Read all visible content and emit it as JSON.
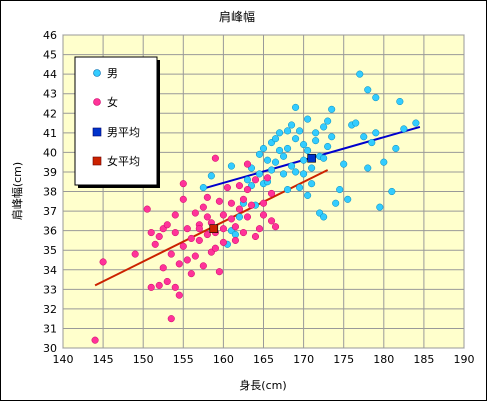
{
  "chart_data": {
    "type": "scatter",
    "title": "肩峰幅",
    "xlabel": "身長(cm)",
    "ylabel": "肩峰幅(cm)",
    "xlim": [
      140,
      190
    ],
    "ylim": [
      30,
      46
    ],
    "xticks": [
      140,
      145,
      150,
      155,
      160,
      165,
      170,
      175,
      180,
      185,
      190
    ],
    "yticks": [
      30,
      31,
      32,
      33,
      34,
      35,
      36,
      37,
      38,
      39,
      40,
      41,
      42,
      43,
      44,
      45,
      46
    ],
    "grid": true,
    "legend_position": "top-left",
    "background_color": "#ffffcc",
    "series": [
      {
        "name": "男",
        "kind": "points",
        "marker": "circle",
        "color": "#33ccff",
        "points": [
          [
            157.5,
            38.2
          ],
          [
            158.5,
            38.8
          ],
          [
            160.5,
            35.3
          ],
          [
            161,
            36
          ],
          [
            161,
            39.3
          ],
          [
            161.5,
            35.8
          ],
          [
            162,
            36.7
          ],
          [
            162.5,
            37.4
          ],
          [
            163,
            38.6
          ],
          [
            163.5,
            38.3
          ],
          [
            163.5,
            39.2
          ],
          [
            164,
            37.3
          ],
          [
            164.5,
            38.9
          ],
          [
            164.5,
            39.9
          ],
          [
            165,
            40.2
          ],
          [
            165,
            38.4
          ],
          [
            165.5,
            38.5
          ],
          [
            165.5,
            39.6
          ],
          [
            166,
            40.5
          ],
          [
            166,
            39.1
          ],
          [
            166.5,
            40.7
          ],
          [
            166.5,
            39.5
          ],
          [
            167,
            40.1
          ],
          [
            167,
            41
          ],
          [
            167.5,
            39.8
          ],
          [
            167.5,
            38.9
          ],
          [
            168,
            41.1
          ],
          [
            168,
            40.2
          ],
          [
            168.5,
            41.4
          ],
          [
            168.5,
            39.3
          ],
          [
            169,
            42.3
          ],
          [
            169,
            40.7
          ],
          [
            169,
            39
          ],
          [
            169.5,
            41.1
          ],
          [
            169.5,
            38.2
          ],
          [
            170,
            40.4
          ],
          [
            170,
            39.6
          ],
          [
            170,
            38.9
          ],
          [
            170.5,
            41.7
          ],
          [
            170.5,
            40.1
          ],
          [
            171,
            39.2
          ],
          [
            171,
            38.4
          ],
          [
            171.5,
            41
          ],
          [
            171.5,
            40.6
          ],
          [
            172,
            39.8
          ],
          [
            172,
            36.9
          ],
          [
            172.5,
            41.3
          ],
          [
            172.5,
            39.7
          ],
          [
            173,
            41.6
          ],
          [
            173,
            40.3
          ],
          [
            173.5,
            42.2
          ],
          [
            173.5,
            40.8
          ],
          [
            174,
            37.4
          ],
          [
            174.5,
            38.1
          ],
          [
            175,
            39.4
          ],
          [
            175.5,
            37.6
          ],
          [
            176,
            41.4
          ],
          [
            176.5,
            41.5
          ],
          [
            177,
            44
          ],
          [
            177.5,
            40.8
          ],
          [
            178,
            43.2
          ],
          [
            178,
            39.2
          ],
          [
            178.5,
            40.5
          ],
          [
            179,
            41
          ],
          [
            179,
            42.8
          ],
          [
            179.5,
            37.2
          ],
          [
            180,
            39.5
          ],
          [
            181,
            38
          ],
          [
            181.5,
            40.2
          ],
          [
            182,
            42.6
          ],
          [
            182.5,
            41.2
          ],
          [
            184,
            41.5
          ],
          [
            172.5,
            36.7
          ],
          [
            170.5,
            37.8
          ],
          [
            168,
            38.1
          ]
        ]
      },
      {
        "name": "女",
        "kind": "points",
        "marker": "circle",
        "color": "#ff3399",
        "points": [
          [
            144,
            30.4
          ],
          [
            145,
            34.4
          ],
          [
            149,
            34.8
          ],
          [
            150.5,
            37.1
          ],
          [
            151,
            33.1
          ],
          [
            151,
            35.9
          ],
          [
            151.5,
            35.3
          ],
          [
            152,
            33.2
          ],
          [
            152,
            35.7
          ],
          [
            152.5,
            34.1
          ],
          [
            152.5,
            36.1
          ],
          [
            153,
            33.4
          ],
          [
            153,
            36.3
          ],
          [
            153.5,
            31.5
          ],
          [
            153.5,
            34.8
          ],
          [
            154,
            33.1
          ],
          [
            154,
            35.9
          ],
          [
            154,
            36.8
          ],
          [
            154.5,
            32.7
          ],
          [
            154.5,
            34.3
          ],
          [
            155,
            35.2
          ],
          [
            155,
            37.6
          ],
          [
            155,
            38.4
          ],
          [
            155.5,
            36.1
          ],
          [
            155.5,
            34.5
          ],
          [
            156,
            35.6
          ],
          [
            156,
            33.8
          ],
          [
            156.5,
            36.9
          ],
          [
            156.5,
            34.7
          ],
          [
            157,
            36.3
          ],
          [
            157,
            35.5
          ],
          [
            157.5,
            37.2
          ],
          [
            157.5,
            34.2
          ],
          [
            158,
            35.8
          ],
          [
            158,
            36.7
          ],
          [
            158,
            37.7
          ],
          [
            158.5,
            34.9
          ],
          [
            158.5,
            36.4
          ],
          [
            159,
            35.1
          ],
          [
            159,
            39.7
          ],
          [
            159.5,
            37.5
          ],
          [
            159.5,
            33.9
          ],
          [
            160,
            36.1
          ],
          [
            160,
            35.4
          ],
          [
            160.5,
            38.2
          ],
          [
            161,
            37.4
          ],
          [
            161,
            36.6
          ],
          [
            161.5,
            36.2
          ],
          [
            162,
            38.3
          ],
          [
            162,
            37.1
          ],
          [
            162.5,
            37.6
          ],
          [
            162.5,
            35.9
          ],
          [
            163,
            38.1
          ],
          [
            163,
            36.7
          ],
          [
            163,
            39.4
          ],
          [
            163.5,
            37.3
          ],
          [
            164,
            35.7
          ],
          [
            164,
            38.6
          ],
          [
            164.5,
            36.1
          ],
          [
            165,
            37.4
          ],
          [
            165,
            36.8
          ],
          [
            165.5,
            38.7
          ],
          [
            166,
            36.5
          ],
          [
            166,
            37.9
          ],
          [
            166.5,
            36.2
          ],
          [
            161.5,
            35.5
          ],
          [
            160,
            36.8
          ],
          [
            157,
            36.1
          ],
          [
            159,
            35.9
          ]
        ]
      },
      {
        "name": "男平均",
        "kind": "mean",
        "marker": "square",
        "color": "#0033cc",
        "points": [
          [
            171,
            39.7
          ]
        ]
      },
      {
        "name": "女平均",
        "kind": "mean",
        "marker": "square",
        "color": "#cc2200",
        "points": [
          [
            158.8,
            36.1
          ]
        ]
      },
      {
        "kind": "line",
        "color": "#0000cc",
        "points": [
          [
            157.5,
            38.15
          ],
          [
            184.5,
            41.3
          ]
        ]
      },
      {
        "kind": "line",
        "color": "#cc2200",
        "points": [
          [
            144,
            33.2
          ],
          [
            173,
            39.1
          ]
        ]
      }
    ]
  }
}
